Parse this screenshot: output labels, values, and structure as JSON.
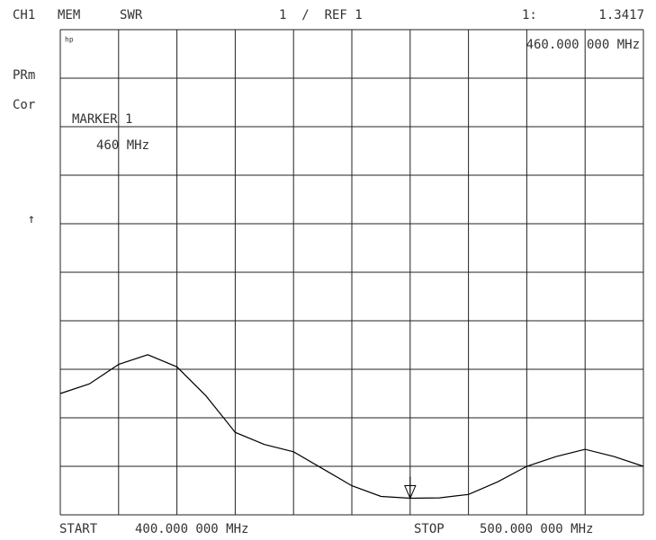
{
  "chart_data": {
    "type": "line",
    "channel": "CH1",
    "memory": "MEM",
    "format": "SWR",
    "scale": "1  /  REF 1",
    "logo": "hp",
    "status_1": "PRm",
    "status_2": "Cor",
    "ref_arrow": "↑",
    "start_label": "START",
    "start_value": "400.000 000 MHz",
    "stop_label": "STOP",
    "stop_value": "500.000 000 MHz",
    "xlim": [
      400,
      500
    ],
    "ylim": [
      1,
      11
    ],
    "x": [
      400,
      405,
      410,
      415,
      420,
      425,
      430,
      435,
      440,
      445,
      450,
      455,
      460,
      465,
      470,
      475,
      480,
      485,
      490,
      495,
      500
    ],
    "series": [
      {
        "color": "#000000",
        "values": [
          3.5,
          3.7,
          4.1,
          4.3,
          4.05,
          3.45,
          2.7,
          2.45,
          2.3,
          1.95,
          1.6,
          1.38,
          1.3417,
          1.35,
          1.42,
          1.68,
          2.0,
          2.2,
          2.35,
          2.2,
          2.0
        ]
      }
    ],
    "marker": {
      "readout_label": "1:",
      "value": 1.3417,
      "readout_frequency": "460.000 000 MHz",
      "title": "MARKER 1",
      "x": 460,
      "x_label": "460 MHz"
    }
  }
}
